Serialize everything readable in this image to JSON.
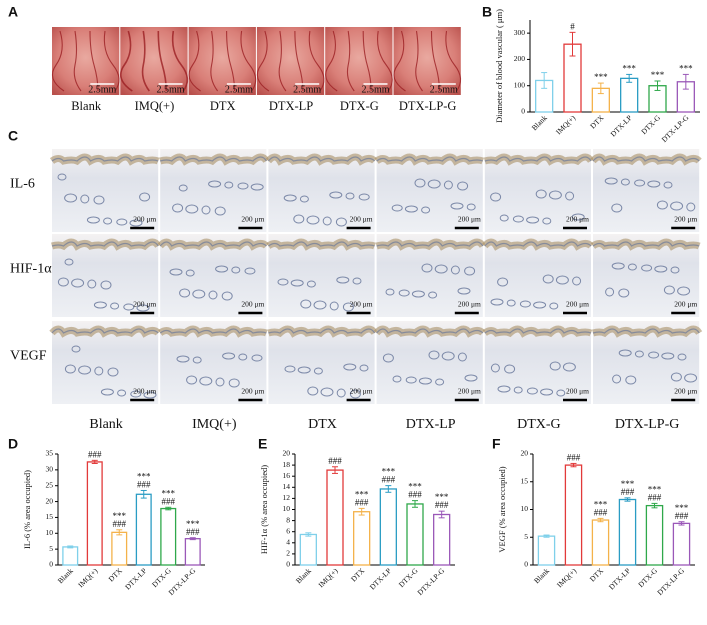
{
  "panel_a": {
    "label": "A",
    "scale_bar": "2.5mm",
    "groups": [
      "Blank",
      "IMQ(+)",
      "DTX",
      "DTX-LP",
      "DTX-G",
      "DTX-LP-G"
    ]
  },
  "panel_c": {
    "label": "C",
    "scale_bar": "200 μm",
    "stains": [
      "IL-6",
      "HIF-1α",
      "VEGF"
    ],
    "groups": [
      "Blank",
      "IMQ(+)",
      "DTX",
      "DTX-LP",
      "DTX-G",
      "DTX-LP-G"
    ]
  },
  "chart_data": [
    {
      "type": "bar",
      "label": "B",
      "y_label": "Diameter of blood vascular ( μm)",
      "categories": [
        "Blank",
        "IMQ(+)",
        "DTX",
        "DTX-LP",
        "DTX-G",
        "DTX-LP-G"
      ],
      "values": [
        120,
        258,
        90,
        128,
        100,
        115
      ],
      "errors": [
        30,
        45,
        20,
        15,
        18,
        28
      ],
      "annotations": [
        [],
        [
          "#"
        ],
        [
          "***"
        ],
        [
          "***"
        ],
        [
          "***"
        ],
        [
          "***"
        ]
      ],
      "colors": [
        "#7fd0ea",
        "#e23a3a",
        "#f4b24a",
        "#2a9cc4",
        "#2fa84a",
        "#9a58b8"
      ],
      "ylim": [
        0,
        350
      ],
      "yticks": [
        0,
        100,
        200,
        300
      ]
    },
    {
      "type": "bar",
      "label": "D",
      "y_label": "IL-6 (% area occupied)",
      "categories": [
        "Blank",
        "IMQ(+)",
        "DTX",
        "DTX-LP",
        "DTX-G",
        "DTX-LP-G"
      ],
      "values": [
        5.7,
        32.5,
        10.3,
        22.3,
        17.8,
        8.3
      ],
      "errors": [
        0.3,
        0.5,
        0.8,
        1.2,
        0.4,
        0.3
      ],
      "annotations": [
        [],
        [
          "###"
        ],
        [
          "***",
          "###"
        ],
        [
          "***",
          "###"
        ],
        [
          "***",
          "###"
        ],
        [
          "***",
          "###"
        ]
      ],
      "colors": [
        "#7fd0ea",
        "#e23a3a",
        "#f4b24a",
        "#2a9cc4",
        "#2fa84a",
        "#9a58b8"
      ],
      "ylim": [
        0,
        35
      ],
      "yticks": [
        0,
        5,
        10,
        15,
        20,
        25,
        30,
        35
      ]
    },
    {
      "type": "bar",
      "label": "E",
      "y_label": "HIF-1α (% area occupied)",
      "categories": [
        "Blank",
        "IMQ(+)",
        "DTX",
        "DTX-LP",
        "DTX-G",
        "DTX-LP-G"
      ],
      "values": [
        5.5,
        17.1,
        9.6,
        13.7,
        11.0,
        9.1
      ],
      "errors": [
        0.3,
        0.6,
        0.6,
        0.6,
        0.6,
        0.6
      ],
      "annotations": [
        [],
        [
          "###"
        ],
        [
          "***",
          "###"
        ],
        [
          "***",
          "###"
        ],
        [
          "***",
          "###"
        ],
        [
          "***",
          "###"
        ]
      ],
      "colors": [
        "#7fd0ea",
        "#e23a3a",
        "#f4b24a",
        "#2a9cc4",
        "#2fa84a",
        "#9a58b8"
      ],
      "ylim": [
        0,
        20
      ],
      "yticks": [
        0,
        2,
        4,
        6,
        8,
        10,
        12,
        14,
        16,
        18,
        20
      ]
    },
    {
      "type": "bar",
      "label": "F",
      "y_label": "VEGF (% area occupied)",
      "categories": [
        "Blank",
        "IMQ(+)",
        "DTX",
        "DTX-LP",
        "DTX-G",
        "DTX-LP-G"
      ],
      "values": [
        5.2,
        18.0,
        8.1,
        11.8,
        10.7,
        7.5
      ],
      "errors": [
        0.2,
        0.3,
        0.3,
        0.3,
        0.4,
        0.3
      ],
      "annotations": [
        [],
        [
          "###"
        ],
        [
          "***",
          "###"
        ],
        [
          "***",
          "###"
        ],
        [
          "***",
          "###"
        ],
        [
          "***",
          "###"
        ]
      ],
      "colors": [
        "#7fd0ea",
        "#e23a3a",
        "#f4b24a",
        "#2a9cc4",
        "#2fa84a",
        "#9a58b8"
      ],
      "ylim": [
        0,
        20
      ],
      "yticks": [
        0,
        5,
        10,
        15,
        20
      ]
    }
  ]
}
